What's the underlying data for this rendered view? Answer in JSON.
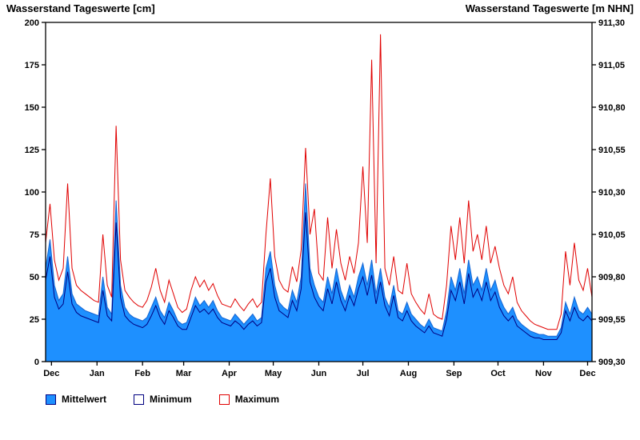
{
  "colors": {
    "mean_fill": "#1E90FF",
    "mean_stroke": "#1464D2",
    "min_line": "#000080",
    "max_line": "#E00000",
    "frame": "#000000"
  },
  "legend": [
    {
      "label": "Mittelwert"
    },
    {
      "label": "Minimum"
    },
    {
      "label": "Maximum"
    }
  ],
  "chart_data": {
    "type": "area",
    "title_left": "Wasserstand Tageswerte [cm]",
    "title_right": "Wasserstand Tageswerte [m NHN]",
    "ylabel_left": "Wasserstand Tageswerte [cm]",
    "ylabel_right": "Wasserstand Tageswerte [m NHN]",
    "ylim": [
      0,
      200
    ],
    "yticks_left": [
      0,
      25,
      50,
      75,
      100,
      125,
      150,
      175,
      200
    ],
    "yticks_right_labels": [
      "909,30",
      "909,55",
      "909,80",
      "910,05",
      "910,30",
      "910,55",
      "910,80",
      "911,05",
      "911,30"
    ],
    "x_range_days": [
      0,
      372
    ],
    "day_step": 3,
    "month_ticks": {
      "days": [
        4,
        35,
        66,
        94,
        125,
        155,
        186,
        216,
        247,
        278,
        308,
        339,
        369
      ],
      "labels": [
        "Dec",
        "Jan",
        "Feb",
        "Mar",
        "Apr",
        "May",
        "Jun",
        "Jul",
        "Aug",
        "Sep",
        "Oct",
        "Nov",
        "Dec"
      ]
    },
    "grid": "off",
    "legend_position": "bottom-left",
    "series": [
      {
        "name": "Mittelwert",
        "role": "mean",
        "values": [
          55,
          72,
          45,
          36,
          40,
          62,
          40,
          34,
          32,
          30,
          29,
          28,
          27,
          50,
          32,
          28,
          95,
          45,
          32,
          28,
          26,
          25,
          24,
          26,
          32,
          38,
          30,
          26,
          35,
          30,
          24,
          22,
          23,
          30,
          38,
          33,
          36,
          32,
          36,
          30,
          26,
          25,
          24,
          28,
          25,
          22,
          25,
          28,
          24,
          26,
          55,
          65,
          45,
          35,
          32,
          30,
          42,
          35,
          50,
          105,
          55,
          45,
          38,
          35,
          50,
          40,
          55,
          42,
          35,
          45,
          38,
          50,
          58,
          45,
          60,
          40,
          55,
          38,
          32,
          45,
          30,
          28,
          35,
          28,
          25,
          22,
          20,
          25,
          20,
          19,
          18,
          30,
          50,
          42,
          55,
          40,
          60,
          45,
          50,
          42,
          55,
          42,
          48,
          38,
          32,
          28,
          32,
          25,
          22,
          20,
          18,
          17,
          16,
          16,
          15,
          15,
          15,
          20,
          35,
          28,
          38,
          30,
          28,
          32,
          28
        ]
      },
      {
        "name": "Minimum",
        "role": "min",
        "values": [
          48,
          62,
          38,
          31,
          34,
          53,
          34,
          29,
          27,
          26,
          25,
          24,
          23,
          42,
          27,
          24,
          82,
          38,
          27,
          24,
          22,
          21,
          20,
          22,
          27,
          33,
          26,
          22,
          30,
          26,
          21,
          19,
          19,
          26,
          33,
          29,
          31,
          28,
          31,
          26,
          23,
          22,
          21,
          24,
          22,
          19,
          22,
          24,
          21,
          23,
          47,
          55,
          38,
          30,
          28,
          26,
          36,
          30,
          43,
          88,
          47,
          38,
          33,
          30,
          43,
          34,
          47,
          36,
          30,
          39,
          33,
          43,
          50,
          39,
          51,
          34,
          47,
          33,
          27,
          39,
          26,
          24,
          30,
          24,
          21,
          19,
          17,
          21,
          17,
          16,
          15,
          25,
          42,
          36,
          47,
          34,
          52,
          38,
          43,
          36,
          47,
          36,
          41,
          32,
          27,
          24,
          27,
          21,
          19,
          17,
          15,
          14,
          14,
          13,
          13,
          13,
          13,
          17,
          30,
          24,
          32,
          26,
          24,
          27,
          24
        ]
      },
      {
        "name": "Maximum",
        "role": "max",
        "values": [
          70,
          93,
          60,
          48,
          55,
          105,
          55,
          45,
          42,
          40,
          38,
          36,
          35,
          75,
          45,
          38,
          139,
          60,
          42,
          38,
          35,
          33,
          32,
          36,
          44,
          55,
          42,
          35,
          48,
          40,
          32,
          29,
          31,
          42,
          50,
          44,
          48,
          42,
          46,
          39,
          34,
          33,
          32,
          37,
          33,
          30,
          34,
          37,
          32,
          35,
          75,
          108,
          62,
          48,
          43,
          41,
          56,
          47,
          66,
          126,
          75,
          90,
          52,
          48,
          85,
          55,
          78,
          58,
          48,
          62,
          52,
          70,
          115,
          70,
          178,
          58,
          193,
          55,
          45,
          62,
          42,
          40,
          58,
          40,
          35,
          31,
          28,
          40,
          28,
          26,
          25,
          45,
          80,
          60,
          85,
          58,
          95,
          65,
          75,
          60,
          80,
          58,
          68,
          55,
          45,
          40,
          50,
          35,
          30,
          27,
          24,
          22,
          21,
          20,
          19,
          19,
          19,
          28,
          65,
          45,
          70,
          48,
          42,
          55,
          38
        ]
      }
    ]
  }
}
